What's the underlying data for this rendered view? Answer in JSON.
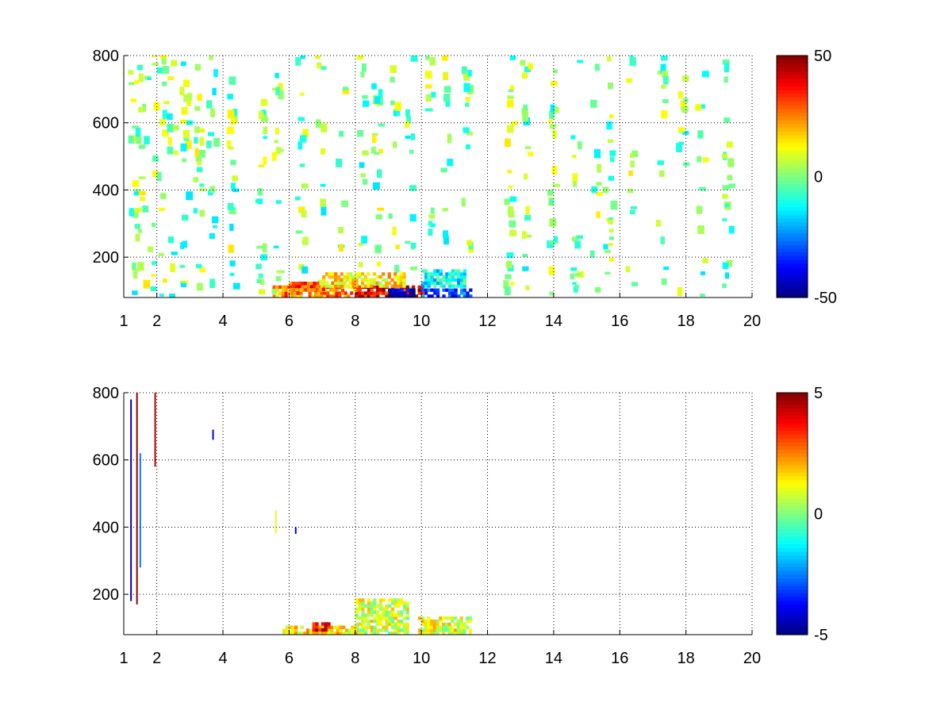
{
  "chart_data": [
    {
      "type": "heatmap",
      "title": "",
      "xlabel": "",
      "ylabel": "",
      "xlim": [
        1,
        20
      ],
      "ylim": [
        80,
        800
      ],
      "x_ticks": [
        1,
        2,
        4,
        6,
        8,
        10,
        12,
        14,
        16,
        18,
        20
      ],
      "y_ticks": [
        200,
        400,
        600,
        800
      ],
      "grid": true,
      "colorscale": "jet",
      "clim": [
        -50,
        50
      ],
      "colorbar_ticks": [
        -50,
        0,
        50
      ],
      "patches": [
        {
          "x": [
            8,
            10
          ],
          "y": [
            80,
            110
          ],
          "value": 40
        },
        {
          "x": [
            9,
            9.8
          ],
          "y": [
            80,
            100
          ],
          "value": -45
        },
        {
          "x": [
            10,
            11.5
          ],
          "y": [
            80,
            105
          ],
          "value": -30
        },
        {
          "x": [
            5.5,
            8
          ],
          "y": [
            80,
            110
          ],
          "value": 25
        },
        {
          "x": [
            7,
            9.5
          ],
          "y": [
            110,
            150
          ],
          "value": 15
        },
        {
          "x": [
            10,
            11.3
          ],
          "y": [
            110,
            160
          ],
          "value": -12
        },
        {
          "x": [
            6,
            7
          ],
          "y": [
            100,
            120
          ],
          "value": 30
        }
      ],
      "noise_columns": [
        1.2,
        1.35,
        1.5,
        1.8,
        2.1,
        2.4,
        2.8,
        3.2,
        3.6,
        4.2,
        5.1,
        5.6,
        6.3,
        6.9,
        7.5,
        8.1,
        8.6,
        9.1,
        9.6,
        10.2,
        10.7,
        11.3,
        12.6,
        13.1,
        13.9,
        14.6,
        15.2,
        15.6,
        16.3,
        17.2,
        17.8,
        18.4,
        19.2
      ],
      "noise_range": [
        -15,
        15
      ]
    },
    {
      "type": "heatmap",
      "title": "",
      "xlabel": "",
      "ylabel": "",
      "xlim": [
        1,
        20
      ],
      "ylim": [
        80,
        800
      ],
      "x_ticks": [
        1,
        2,
        4,
        6,
        8,
        10,
        12,
        14,
        16,
        18,
        20
      ],
      "y_ticks": [
        200,
        400,
        600,
        800
      ],
      "grid": true,
      "colorscale": "jet",
      "clim": [
        -5,
        5
      ],
      "colorbar_ticks": [
        -5,
        0,
        5
      ],
      "spikes": [
        {
          "x": 1.22,
          "y": [
            180,
            780
          ],
          "value": -4.5
        },
        {
          "x": 1.4,
          "y": [
            170,
            800
          ],
          "value": 4.8
        },
        {
          "x": 1.5,
          "y": [
            280,
            620
          ],
          "value": -2.5
        },
        {
          "x": 1.95,
          "y": [
            580,
            800
          ],
          "value": 4.5
        },
        {
          "x": 3.7,
          "y": [
            660,
            690
          ],
          "value": -4
        },
        {
          "x": 5.6,
          "y": [
            380,
            450
          ],
          "value": 1
        },
        {
          "x": 6.2,
          "y": [
            380,
            400
          ],
          "value": -4
        }
      ],
      "patches": [
        {
          "x": [
            8,
            9.6
          ],
          "y": [
            80,
            180
          ],
          "value": 0.8
        },
        {
          "x": [
            9.9,
            11.5
          ],
          "y": [
            80,
            130
          ],
          "value": 1
        },
        {
          "x": [
            5.8,
            8
          ],
          "y": [
            80,
            100
          ],
          "value": 1.5
        },
        {
          "x": [
            6.7,
            7.2
          ],
          "y": [
            90,
            110
          ],
          "value": 4
        }
      ]
    }
  ]
}
